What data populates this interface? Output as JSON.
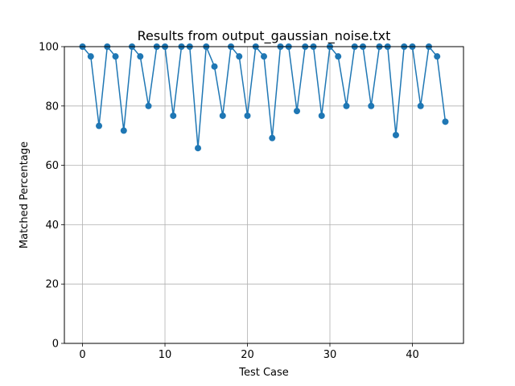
{
  "chart_data": {
    "type": "line",
    "title": "Results from output_gaussian_noise.txt",
    "xlabel": "Test Case",
    "ylabel": "Matched Percentage",
    "xlim": [
      -2.2,
      46.2
    ],
    "ylim": [
      0,
      100
    ],
    "xticks": [
      0,
      10,
      20,
      30,
      40
    ],
    "yticks": [
      0,
      20,
      40,
      60,
      80,
      100
    ],
    "grid": true,
    "marker": "circle",
    "color": "#1f77b4",
    "series": [
      {
        "x": [
          0,
          1,
          2,
          3,
          4,
          5,
          6,
          7,
          8,
          9,
          10,
          11,
          12,
          13,
          14,
          15,
          16,
          17,
          18,
          19,
          20,
          21,
          22,
          23,
          24,
          25,
          26,
          27,
          28,
          29,
          30,
          31,
          32,
          33,
          34,
          35,
          36,
          37,
          38,
          39,
          40,
          41,
          42,
          43,
          44
        ],
        "values": [
          100,
          96.7,
          73.3,
          100,
          96.7,
          71.7,
          100,
          96.7,
          80,
          100,
          100,
          76.7,
          100,
          100,
          65.8,
          100,
          93.3,
          76.7,
          100,
          96.7,
          76.7,
          100,
          96.7,
          69.2,
          100,
          100,
          78.3,
          100,
          100,
          76.7,
          100,
          96.7,
          80,
          100,
          100,
          80,
          100,
          100,
          70.2,
          100,
          100,
          80,
          100,
          96.7,
          74.7
        ]
      }
    ]
  }
}
